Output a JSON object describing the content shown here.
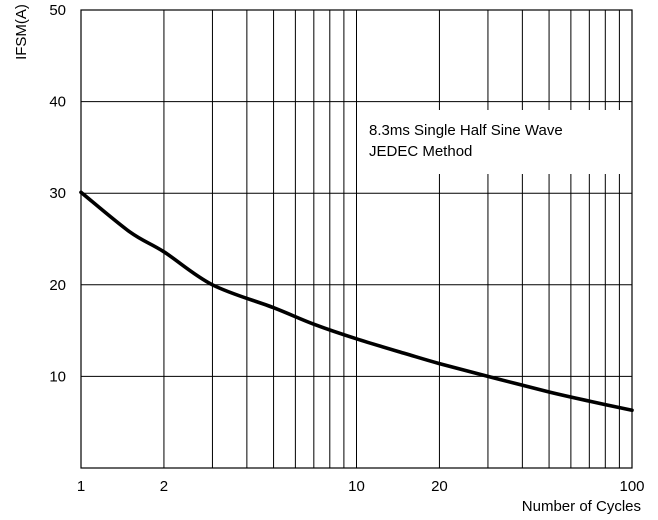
{
  "chart_data": {
    "type": "line",
    "title": "",
    "xlabel": "Number of Cycles",
    "ylabel": "IFSM(A)",
    "x_scale": "log",
    "xlim": [
      1,
      100
    ],
    "ylim": [
      0,
      50
    ],
    "x_ticks": [
      1,
      2,
      10,
      20,
      100
    ],
    "x_tick_labels": [
      "1",
      "2",
      "10",
      "20",
      "100"
    ],
    "y_ticks": [
      10,
      20,
      30,
      40,
      50
    ],
    "y_tick_labels": [
      "10",
      "20",
      "30",
      "40",
      "50"
    ],
    "x_gridlines": [
      1,
      2,
      3,
      4,
      5,
      6,
      7,
      8,
      9,
      10,
      20,
      30,
      40,
      50,
      60,
      70,
      80,
      90,
      100
    ],
    "y_gridlines": [
      10,
      20,
      30,
      40,
      50
    ],
    "grid": true,
    "annotation": [
      "8.3ms Single Half Sine Wave",
      "JEDEC Method"
    ],
    "series": [
      {
        "x": [
          1,
          1.5,
          2,
          3,
          5,
          7,
          10,
          15,
          20,
          30,
          50,
          70,
          100
        ],
        "y": [
          30.1,
          25.8,
          23.6,
          20.0,
          17.5,
          15.7,
          14.1,
          12.5,
          11.4,
          10.0,
          8.3,
          7.3,
          6.3
        ]
      }
    ],
    "line_color": "#000000"
  }
}
